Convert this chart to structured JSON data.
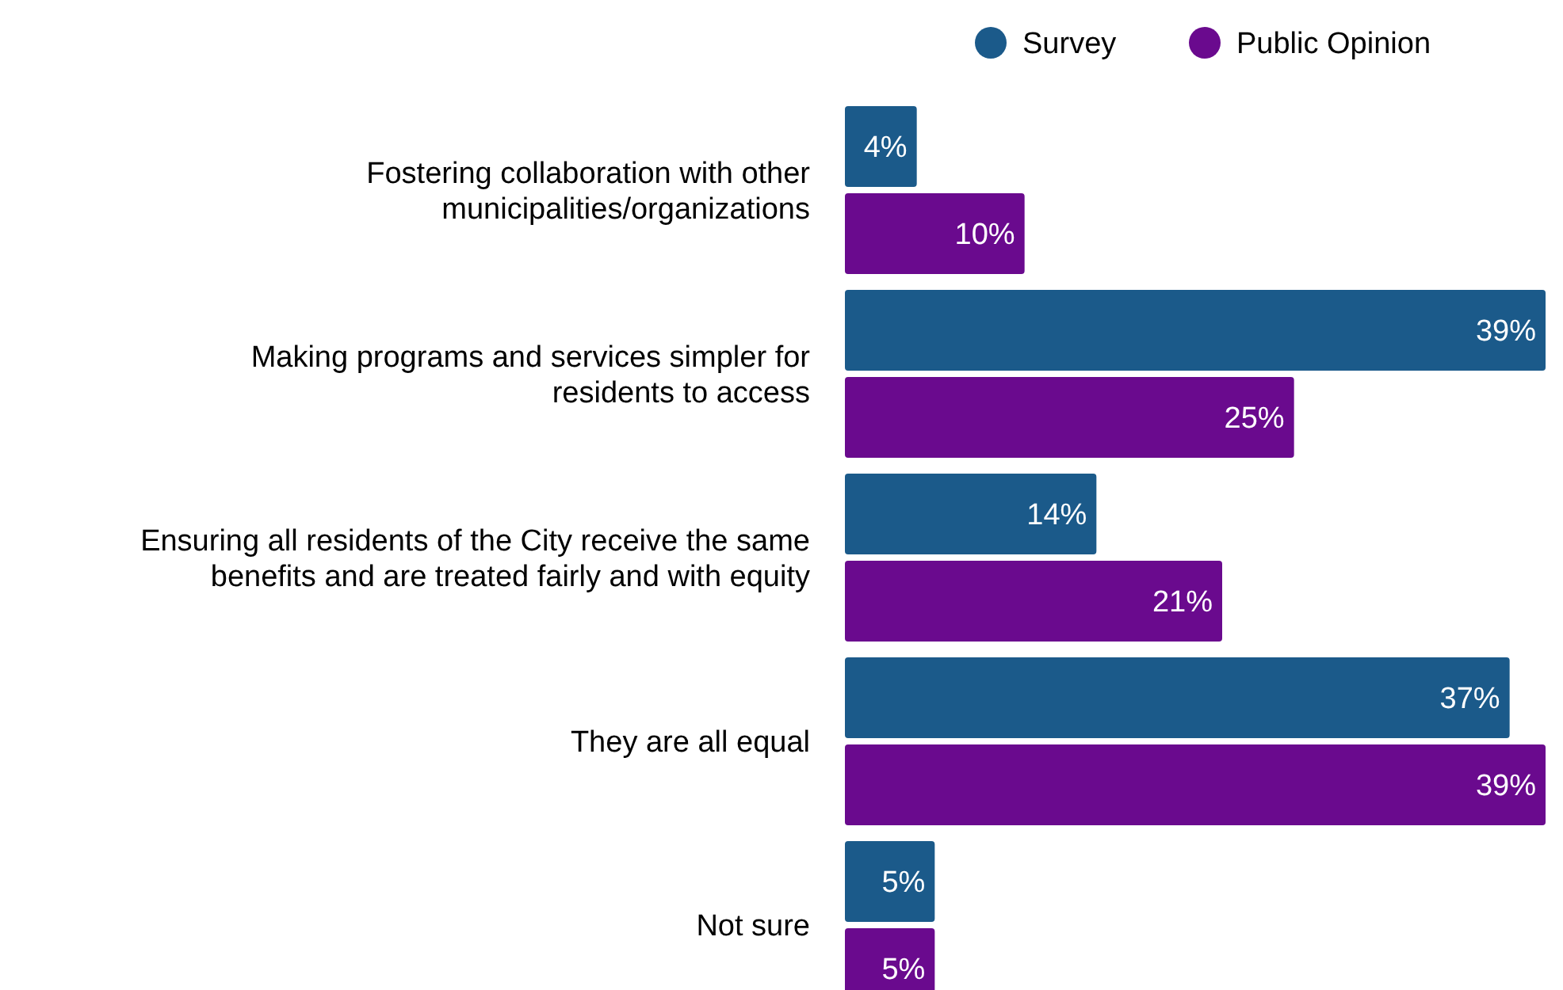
{
  "chart_data": {
    "type": "bar",
    "orientation": "horizontal",
    "categories": [
      "Fostering collaboration with other\nmunicipalities/organizations",
      "Making programs and services simpler for\nresidents to access",
      "Ensuring all residents of the City receive the same\nbenefits and are treated fairly and with equity",
      "They are all equal",
      "Not sure"
    ],
    "series": [
      {
        "name": "Survey",
        "color": "#1b5a8a",
        "values": [
          4,
          39,
          14,
          37,
          5
        ],
        "value_labels": [
          "4%",
          "39%",
          "14%",
          "37%",
          "5%"
        ]
      },
      {
        "name": "Public Opinion",
        "color": "#6a0a8e",
        "values": [
          10,
          25,
          21,
          39,
          5
        ],
        "value_labels": [
          "10%",
          "25%",
          "21%",
          "39%",
          "5%"
        ]
      }
    ],
    "legend": "top right"
  }
}
